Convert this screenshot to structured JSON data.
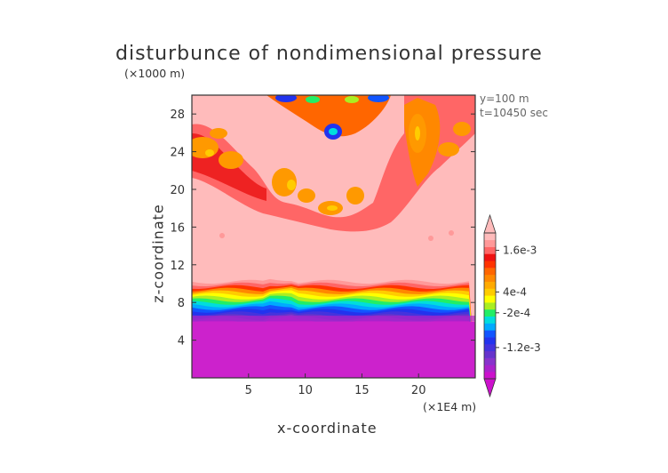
{
  "chart_data": {
    "type": "heatmap",
    "title": "disturbunce of nondimensional pressure",
    "xlabel": "x-coordinate",
    "ylabel": "z-coordinate",
    "x_unit": "(×1E4 m)",
    "y_unit": "(×1000 m)",
    "annotations": [
      "y=100 m",
      "t=10450 sec"
    ],
    "xlim": [
      0,
      25
    ],
    "ylim": [
      0,
      30
    ],
    "x_ticks": [
      5,
      10,
      15,
      20
    ],
    "y_ticks": [
      4,
      8,
      12,
      16,
      20,
      24,
      28
    ],
    "colorbar": {
      "labels": [
        {
          "value": 0.0016,
          "text": "1.6e-3"
        },
        {
          "value": 0.0004,
          "text": "4e-4"
        },
        {
          "value": -0.0002,
          "text": "-2e-4"
        },
        {
          "value": -0.0012,
          "text": "-1.2e-3"
        }
      ],
      "colors": [
        "#cc11cc",
        "#aa22cc",
        "#8833cc",
        "#6633cc",
        "#4433dd",
        "#2233ee",
        "#1155ff",
        "#00aaff",
        "#00dddd",
        "#22ee66",
        "#aaee22",
        "#ffff00",
        "#ffcc00",
        "#ffaa00",
        "#ff8800",
        "#ff6600",
        "#ff3300",
        "#ee1111",
        "#ff6666",
        "#ff9999",
        "#ffbbbb"
      ]
    },
    "field_layers": [
      {
        "level": "base",
        "color": "#ffbbbb"
      },
      {
        "level": "upper-ring",
        "color": "#ff6666",
        "z_range": [
          17,
          30
        ]
      },
      {
        "level": "orange-cores",
        "color": "#ff9900"
      },
      {
        "level": "strong-negative-cells",
        "color": "#00aaff"
      },
      {
        "level": "gradient-band",
        "z_range": [
          6,
          10
        ]
      },
      {
        "level": "negative-bottom",
        "color": "#cc22cc",
        "z_range": [
          0,
          6
        ]
      }
    ]
  }
}
